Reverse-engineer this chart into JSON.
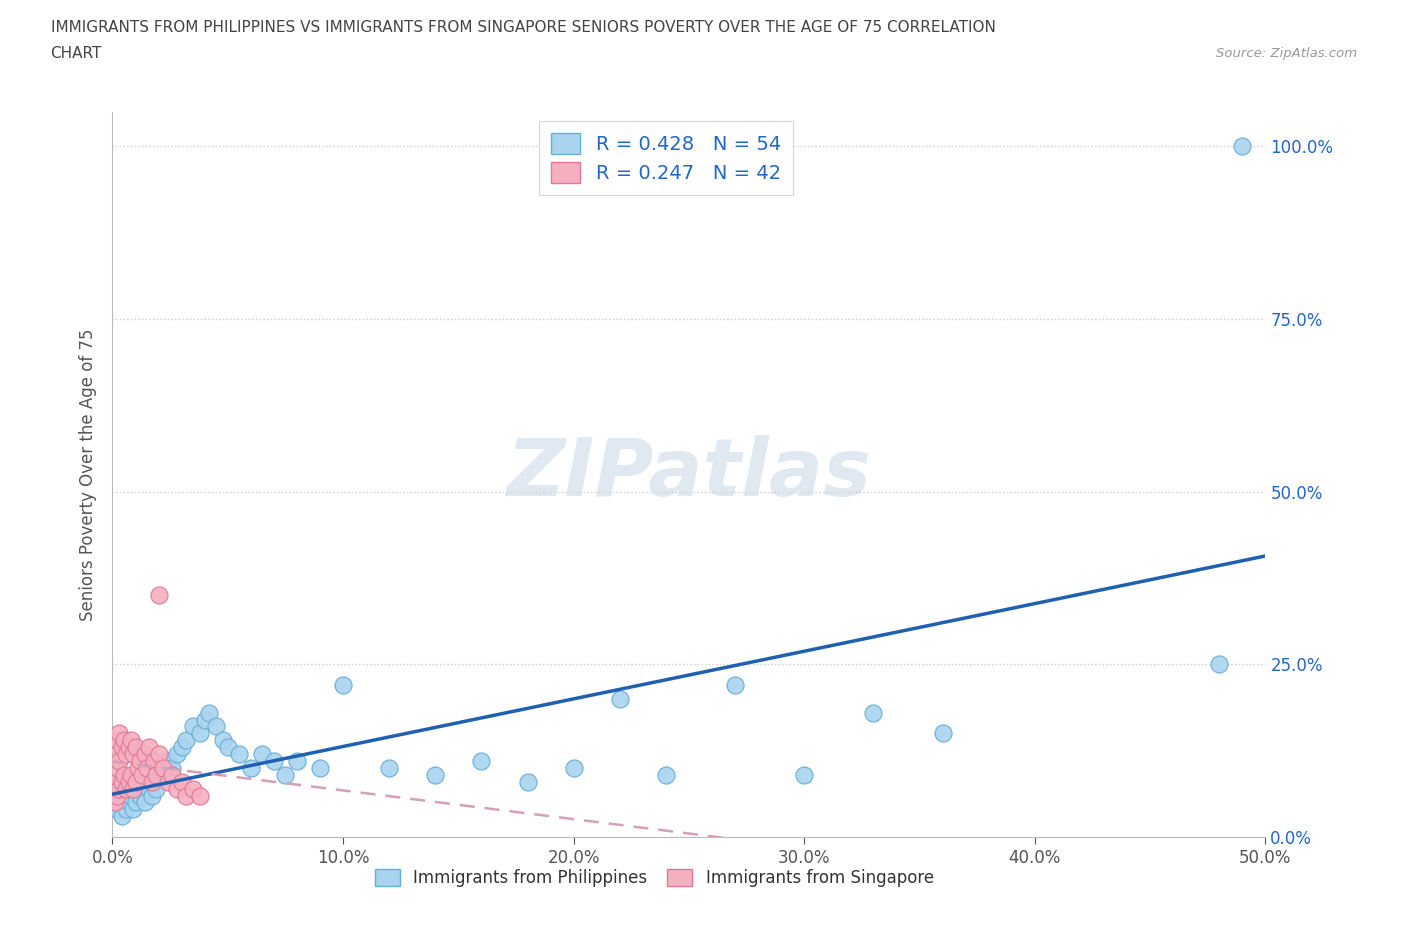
{
  "title_line1": "IMMIGRANTS FROM PHILIPPINES VS IMMIGRANTS FROM SINGAPORE SENIORS POVERTY OVER THE AGE OF 75 CORRELATION",
  "title_line2": "CHART",
  "source": "Source: ZipAtlas.com",
  "ylabel_label": "Seniors Poverty Over the Age of 75",
  "xlim": [
    0.0,
    0.5
  ],
  "ylim": [
    0.0,
    1.05
  ],
  "x_tick_vals": [
    0.0,
    0.1,
    0.2,
    0.3,
    0.4,
    0.5
  ],
  "x_tick_labels": [
    "0.0%",
    "10.0%",
    "20.0%",
    "30.0%",
    "40.0%",
    "50.0%"
  ],
  "y_tick_vals": [
    0.0,
    0.25,
    0.5,
    0.75,
    1.0
  ],
  "y_tick_labels": [
    "0.0%",
    "25.0%",
    "50.0%",
    "75.0%",
    "100.0%"
  ],
  "philippines_R": 0.428,
  "philippines_N": 54,
  "singapore_R": 0.247,
  "singapore_N": 42,
  "philippines_color": "#a8d4f0",
  "philippines_edge": "#6aadd5",
  "singapore_color": "#f5b0c0",
  "singapore_edge": "#e07898",
  "trendline_phil_color": "#2060b0",
  "trendline_sing_color": "#d4a0b8",
  "legend_color": "#2266cc",
  "title_color": "#444444",
  "source_color": "#999999",
  "watermark_color": "#c8d8e8",
  "background": "#ffffff",
  "watermark": "ZIPatlas",
  "phil_x": [
    0.001,
    0.002,
    0.003,
    0.004,
    0.005,
    0.006,
    0.007,
    0.008,
    0.009,
    0.01,
    0.011,
    0.012,
    0.013,
    0.014,
    0.015,
    0.016,
    0.017,
    0.018,
    0.019,
    0.02,
    0.022,
    0.024,
    0.026,
    0.028,
    0.03,
    0.032,
    0.035,
    0.038,
    0.04,
    0.042,
    0.045,
    0.048,
    0.05,
    0.055,
    0.06,
    0.065,
    0.07,
    0.075,
    0.08,
    0.09,
    0.1,
    0.12,
    0.14,
    0.16,
    0.18,
    0.2,
    0.22,
    0.24,
    0.27,
    0.3,
    0.33,
    0.36,
    0.48,
    0.49
  ],
  "phil_y": [
    0.05,
    0.04,
    0.06,
    0.03,
    0.07,
    0.04,
    0.05,
    0.06,
    0.04,
    0.05,
    0.07,
    0.06,
    0.08,
    0.05,
    0.09,
    0.07,
    0.06,
    0.08,
    0.07,
    0.1,
    0.09,
    0.11,
    0.1,
    0.12,
    0.13,
    0.14,
    0.16,
    0.15,
    0.17,
    0.18,
    0.16,
    0.14,
    0.13,
    0.12,
    0.1,
    0.12,
    0.11,
    0.09,
    0.11,
    0.1,
    0.22,
    0.1,
    0.09,
    0.11,
    0.08,
    0.1,
    0.2,
    0.09,
    0.22,
    0.09,
    0.18,
    0.15,
    0.25,
    1.0
  ],
  "sing_x": [
    0.001,
    0.001,
    0.001,
    0.002,
    0.002,
    0.002,
    0.003,
    0.003,
    0.003,
    0.004,
    0.004,
    0.005,
    0.005,
    0.006,
    0.006,
    0.007,
    0.007,
    0.008,
    0.008,
    0.009,
    0.009,
    0.01,
    0.01,
    0.011,
    0.012,
    0.013,
    0.014,
    0.015,
    0.016,
    0.017,
    0.018,
    0.019,
    0.02,
    0.022,
    0.024,
    0.026,
    0.028,
    0.03,
    0.032,
    0.035,
    0.038,
    0.02
  ],
  "sing_y": [
    0.05,
    0.08,
    0.12,
    0.06,
    0.1,
    0.14,
    0.07,
    0.11,
    0.15,
    0.08,
    0.13,
    0.09,
    0.14,
    0.07,
    0.12,
    0.08,
    0.13,
    0.09,
    0.14,
    0.07,
    0.12,
    0.08,
    0.13,
    0.1,
    0.11,
    0.09,
    0.12,
    0.1,
    0.13,
    0.08,
    0.11,
    0.09,
    0.12,
    0.1,
    0.08,
    0.09,
    0.07,
    0.08,
    0.06,
    0.07,
    0.06,
    0.35
  ]
}
